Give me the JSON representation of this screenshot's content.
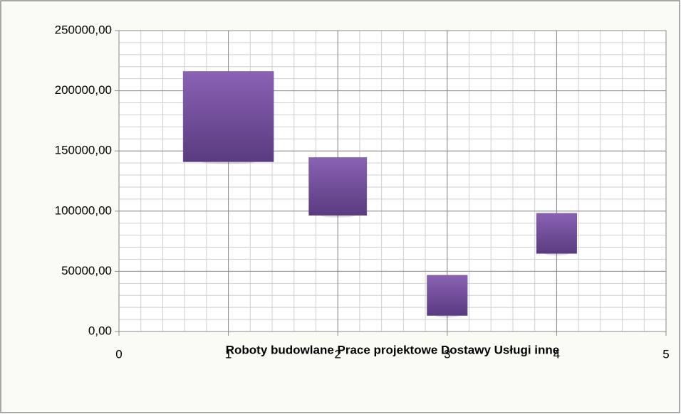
{
  "chart_data": {
    "type": "bubble",
    "x_label": "Roboty budowlane Prace projektowe Dostawy Usługi inne",
    "x": [
      1,
      2,
      3,
      4
    ],
    "values": [
      178500,
      120500,
      30000,
      81500
    ],
    "sizes": [
      161,
      66,
      32,
      32
    ],
    "marker": "square",
    "color": "#7452a0",
    "xlim": [
      0,
      5
    ],
    "xticks": [
      0,
      1,
      2,
      3,
      4,
      5
    ],
    "ylim": [
      0,
      250000
    ],
    "yticks": [
      {
        "value": 0,
        "label": "0,00"
      },
      {
        "value": 50000,
        "label": "50000,00"
      },
      {
        "value": 100000,
        "label": "100000,00"
      },
      {
        "value": 150000,
        "label": "150000,00"
      },
      {
        "value": 200000,
        "label": "200000,00"
      },
      {
        "value": 250000,
        "label": "250000,00"
      }
    ],
    "grid": true,
    "x_minor_step": 0.2,
    "y_minor_step": 10000
  }
}
